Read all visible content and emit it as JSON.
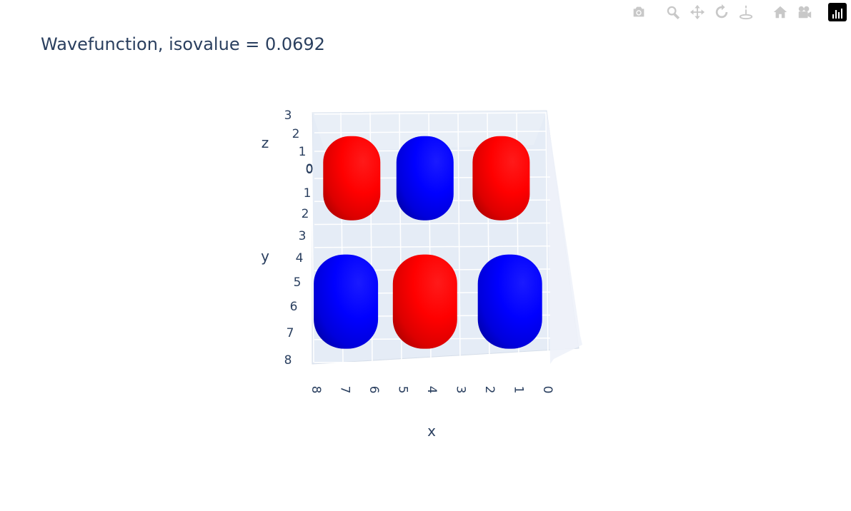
{
  "modebar": {
    "buttons": [
      {
        "icon": "camera-icon",
        "label": "Download plot as a png"
      },
      {
        "icon": "zoom-icon",
        "label": "Zoom"
      },
      {
        "icon": "pan-icon",
        "label": "Pan"
      },
      {
        "icon": "orbit-rotation-icon",
        "label": "Orbital rotation"
      },
      {
        "icon": "turntable-rotation-icon",
        "label": "Turntable rotation"
      },
      {
        "icon": "home-icon",
        "label": "Reset camera to default"
      },
      {
        "icon": "camera-last-save-icon",
        "label": "Reset camera to last save"
      },
      {
        "icon": "plotly-logo-icon",
        "label": "Produced with Plotly"
      }
    ]
  },
  "chart_data": {
    "type": "isosurface",
    "title": "Wavefunction, isovalue = 0.0692",
    "xlabel": "x",
    "ylabel": "y",
    "zlabel": "z",
    "x_ticks": [
      "8",
      "7",
      "6",
      "5",
      "4",
      "3",
      "2",
      "1",
      "0"
    ],
    "y_ticks": [
      "0",
      "1",
      "2",
      "3",
      "4",
      "5",
      "6",
      "7",
      "8"
    ],
    "z_ticks": [
      "3",
      "2",
      "1",
      "0"
    ],
    "xlim": [
      0,
      8
    ],
    "ylim": [
      0,
      8
    ],
    "zlim": [
      0,
      3
    ],
    "colors": {
      "positive": "#ff0000",
      "negative": "#0000ff",
      "background": "#e5ecf6",
      "grid": "#ffffff",
      "text": "#2a3f5f"
    },
    "lobes": [
      {
        "x": 6.7,
        "y": 2.1,
        "sign": "positive"
      },
      {
        "x": 4.2,
        "y": 2.1,
        "sign": "negative"
      },
      {
        "x": 1.6,
        "y": 2.1,
        "sign": "positive"
      },
      {
        "x": 6.9,
        "y": 5.6,
        "sign": "negative"
      },
      {
        "x": 4.2,
        "y": 5.6,
        "sign": "positive"
      },
      {
        "x": 1.3,
        "y": 5.6,
        "sign": "negative"
      }
    ]
  }
}
